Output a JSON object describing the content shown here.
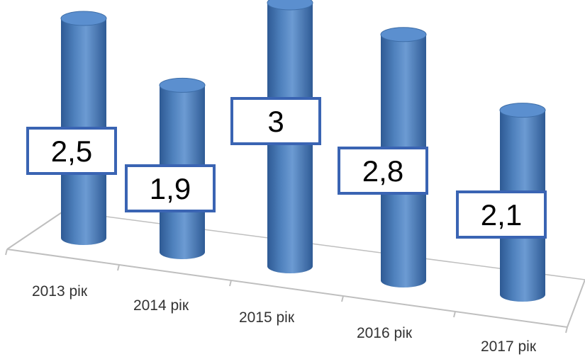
{
  "chart_data": {
    "type": "bar",
    "style": "3d-cylinder",
    "categories": [
      "2013 рік",
      "2014 рік",
      "2015 рік",
      "2016 рік",
      "2017 рік"
    ],
    "series": [
      {
        "values": [
          2.5,
          1.9,
          3,
          2.8,
          2.1
        ],
        "data_labels": [
          "2,5",
          "1,9",
          "3",
          "2,8",
          "2,1"
        ],
        "color": "#4F81BD"
      }
    ],
    "title": "",
    "xlabel": "",
    "ylabel": "",
    "grid": false,
    "legend": "none"
  },
  "colors": {
    "bar_fill": "#4F81BD",
    "bar_top": "#5B8FCF",
    "label_border": "#3A64B3",
    "floor_line": "#BFBFBF"
  }
}
